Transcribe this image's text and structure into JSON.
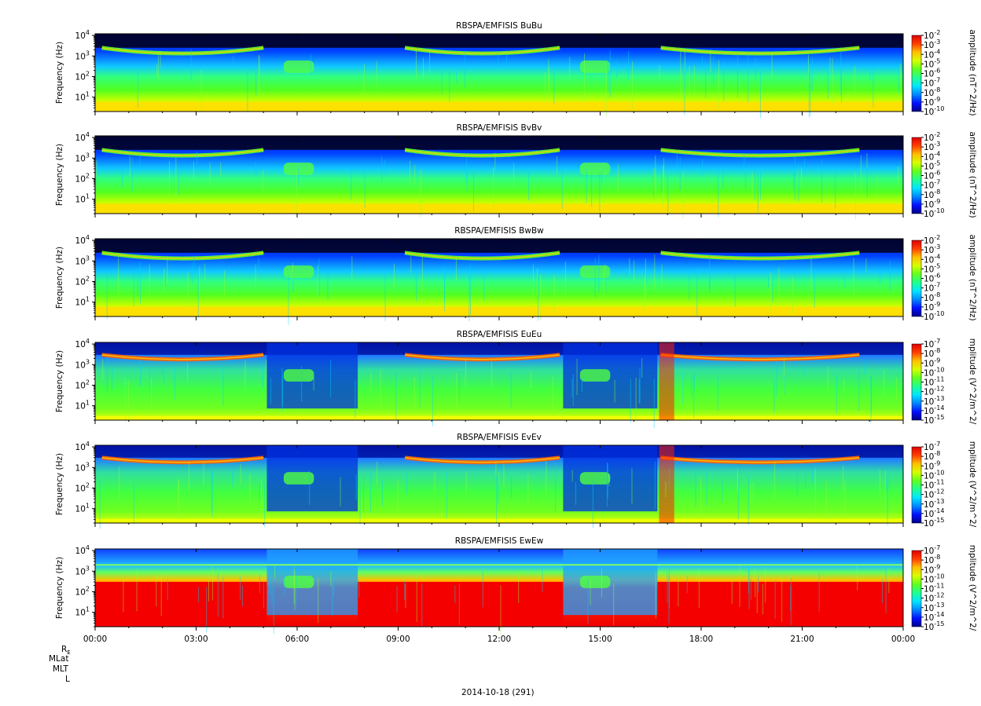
{
  "chart_data": {
    "type": "heatmap",
    "panels": [
      {
        "title": "RBSPA/EMFISIS  BuBu",
        "ylabel": "Frequency (Hz)",
        "ytick_labels": [
          "10^1",
          "10^2",
          "10^3",
          "10^4"
        ],
        "colorbar_label": "amplitude (nT^2/Hz)",
        "colorbar_ticks": [
          "-2",
          "-3",
          "-4",
          "-5",
          "-6",
          "-7",
          "-8",
          "-9",
          "-10"
        ],
        "colorbar_range_exp": [
          -10,
          -2
        ],
        "kind": "magnetic"
      },
      {
        "title": "RBSPA/EMFISIS  BvBv",
        "ylabel": "Frequency (Hz)",
        "ytick_labels": [
          "10^1",
          "10^2",
          "10^3",
          "10^4"
        ],
        "colorbar_label": "amplitude (nT^2/Hz)",
        "colorbar_ticks": [
          "-2",
          "-3",
          "-4",
          "-5",
          "-6",
          "-7",
          "-8",
          "-9",
          "-10"
        ],
        "colorbar_range_exp": [
          -10,
          -2
        ],
        "kind": "magnetic"
      },
      {
        "title": "RBSPA/EMFISIS  BwBw",
        "ylabel": "Frequency (Hz)",
        "ytick_labels": [
          "10^1",
          "10^2",
          "10^3",
          "10^4"
        ],
        "colorbar_label": "amplitude (nT^2/Hz)",
        "colorbar_ticks": [
          "-2",
          "-3",
          "-4",
          "-5",
          "-6",
          "-7",
          "-8",
          "-9",
          "-10"
        ],
        "colorbar_range_exp": [
          -10,
          -2
        ],
        "kind": "magnetic"
      },
      {
        "title": "RBSPA/EMFISIS  EuEu",
        "ylabel": "Frequency (Hz)",
        "ytick_labels": [
          "10^1",
          "10^2",
          "10^3",
          "10^4"
        ],
        "colorbar_label": "mplitude (V^2/m^2/",
        "colorbar_ticks": [
          "-7",
          "-8",
          "-9",
          "-10",
          "-11",
          "-12",
          "-13",
          "-14",
          "-15"
        ],
        "colorbar_range_exp": [
          -15,
          -7
        ],
        "kind": "electric"
      },
      {
        "title": "RBSPA/EMFISIS  EvEv",
        "ylabel": "Frequency (Hz)",
        "ytick_labels": [
          "10^1",
          "10^2",
          "10^3",
          "10^4"
        ],
        "colorbar_label": "mplitude (V^2/m^2/",
        "colorbar_ticks": [
          "-7",
          "-8",
          "-9",
          "-10",
          "-11",
          "-12",
          "-13",
          "-14",
          "-15"
        ],
        "colorbar_range_exp": [
          -15,
          -7
        ],
        "kind": "electric"
      },
      {
        "title": "RBSPA/EMFISIS  EwEw",
        "ylabel": "Frequency (Hz)",
        "ytick_labels": [
          "10^1",
          "10^2",
          "10^3",
          "10^4"
        ],
        "colorbar_label": "mplitude (V^2/m^2/",
        "colorbar_ticks": [
          "-7",
          "-8",
          "-9",
          "-10",
          "-11",
          "-12",
          "-13",
          "-14",
          "-15"
        ],
        "colorbar_range_exp": [
          -15,
          -7
        ],
        "kind": "electric_w"
      }
    ],
    "x_ticks": [
      "00:00",
      "03:00",
      "06:00",
      "09:00",
      "12:00",
      "15:00",
      "18:00",
      "21:00",
      "00:00"
    ],
    "x_range_hours": [
      0,
      24
    ],
    "y_range_hz": [
      2,
      12000
    ],
    "y_scale": "log",
    "ephemeris_labels": [
      "R_E",
      "MLat",
      "MLT",
      "L"
    ],
    "date_label": "2014-10-18 (291)"
  }
}
